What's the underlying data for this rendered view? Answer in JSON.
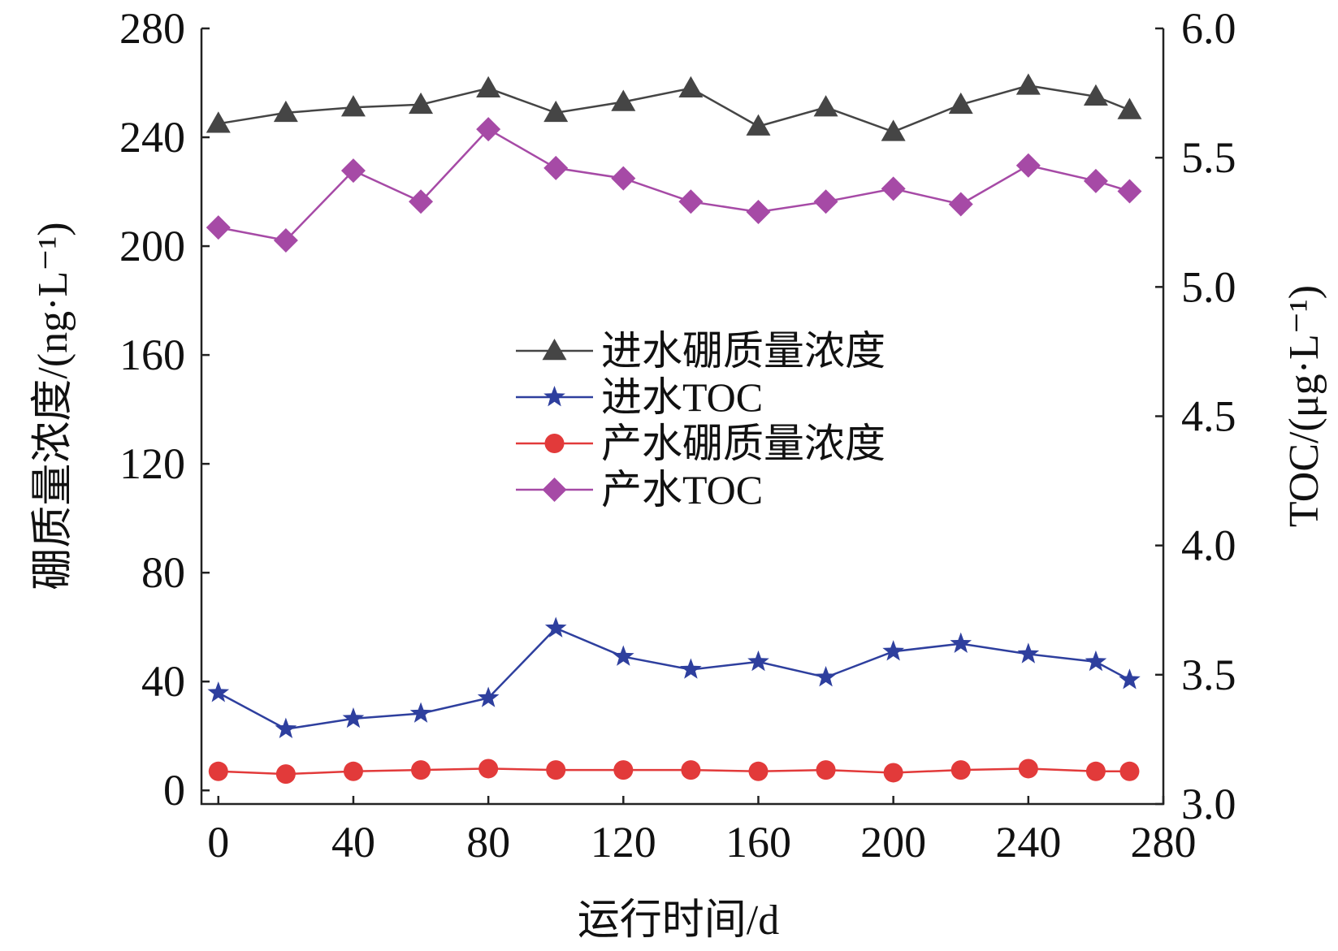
{
  "chart_data": {
    "type": "line",
    "xlabel": "运行时间/d",
    "ylabel_left": "硼质量浓度/(ng·L⁻¹)",
    "ylabel_right": "TOC/(μg·L⁻¹)",
    "xlim": [
      -5,
      280
    ],
    "ylim_left": [
      -5,
      280
    ],
    "ylim_right": [
      3.0,
      6.0
    ],
    "x_ticks": [
      0,
      40,
      80,
      120,
      160,
      200,
      240,
      280
    ],
    "y_left_ticks": [
      0,
      40,
      80,
      120,
      160,
      200,
      240,
      280
    ],
    "y_right_ticks": [
      "3.0",
      "3.5",
      "4.0",
      "4.5",
      "5.0",
      "5.5",
      "6.0"
    ],
    "grid": false,
    "legend_position": "center",
    "x": [
      0,
      20,
      40,
      60,
      80,
      100,
      120,
      140,
      160,
      180,
      200,
      220,
      240,
      260,
      270
    ],
    "series": [
      {
        "name": "进水硼质量浓度",
        "axis": "left",
        "marker": "triangle",
        "color": "#454545",
        "values": [
          245,
          249,
          251,
          252,
          258,
          249,
          253,
          258,
          244,
          251,
          242,
          252,
          259,
          255,
          250
        ]
      },
      {
        "name": "进水TOC",
        "axis": "right",
        "marker": "star",
        "color": "#2e3f9e",
        "values": [
          3.43,
          3.29,
          3.33,
          3.35,
          3.41,
          3.68,
          3.57,
          3.52,
          3.55,
          3.49,
          3.59,
          3.62,
          3.58,
          3.55,
          3.48
        ]
      },
      {
        "name": "产水硼质量浓度",
        "axis": "left",
        "marker": "circle",
        "color": "#e23a3a",
        "values": [
          7,
          6,
          7,
          7.5,
          8,
          7.5,
          7.5,
          7.5,
          7,
          7.5,
          6.5,
          7.5,
          8,
          7,
          7
        ]
      },
      {
        "name": "产水TOC",
        "axis": "right",
        "marker": "diamond",
        "color": "#a64aa6",
        "values": [
          5.23,
          5.18,
          5.45,
          5.33,
          5.61,
          5.46,
          5.42,
          5.33,
          5.29,
          5.33,
          5.38,
          5.32,
          5.47,
          5.41,
          5.37
        ]
      }
    ]
  }
}
